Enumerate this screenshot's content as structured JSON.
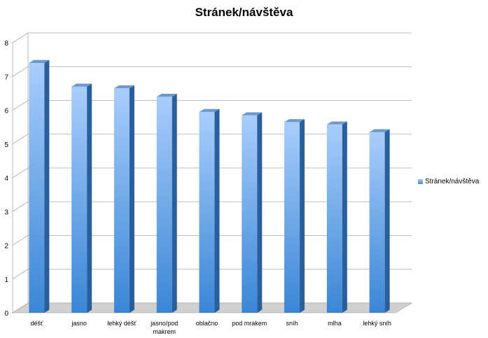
{
  "chart_data": {
    "type": "bar",
    "title": "Stránek/návštěva",
    "xlabel": "",
    "ylabel": "",
    "categories": [
      "déšť",
      "jasno",
      "lehký déšť",
      "jasno/pod makrem",
      "oblačno",
      "pod mrakem",
      "sníh",
      "mlha",
      "lehký sníh"
    ],
    "series": [
      {
        "name": "Stránek/návštěva",
        "values": [
          7.4,
          6.7,
          6.65,
          6.4,
          5.95,
          5.85,
          5.65,
          5.58,
          5.35
        ]
      }
    ],
    "ylim": [
      0,
      8
    ],
    "yticks": [
      0,
      1,
      2,
      3,
      4,
      5,
      6,
      7,
      8
    ],
    "grid": true,
    "legend_position": "right",
    "style": "3d-column",
    "colors": {
      "bar_light": "#a8cdfb",
      "bar_dark": "#3a86d6",
      "bar_side": "#2a5f9e",
      "bar_top": "#6a98cf",
      "grid": "#a8a8a8",
      "floor": "#d0d0d0"
    }
  }
}
